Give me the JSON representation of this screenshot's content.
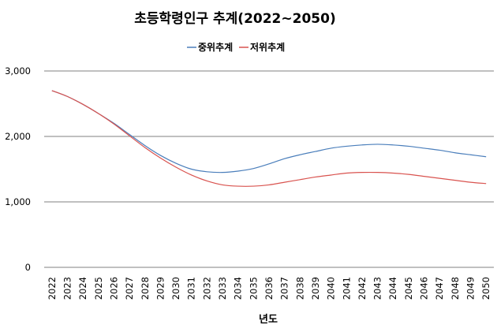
{
  "chart_data": {
    "type": "line",
    "title": "초등학령인구 추계(2022~2050)",
    "xlabel": "년도",
    "ylabel": "",
    "ylim": [
      0,
      3000
    ],
    "yticks": [
      0,
      1000,
      2000,
      3000
    ],
    "ytick_labels": [
      "0",
      "1,000",
      "2,000",
      "3,000"
    ],
    "grid": "horizontal",
    "legend_position": "top-center",
    "x": [
      "2022",
      "2023",
      "2024",
      "2025",
      "2026",
      "2027",
      "2028",
      "2029",
      "2030",
      "2031",
      "2032",
      "2033",
      "2034",
      "2035",
      "2036",
      "2037",
      "2038",
      "2039",
      "2040",
      "2041",
      "2042",
      "2043",
      "2044",
      "2045",
      "2046",
      "2047",
      "2048",
      "2049",
      "2050"
    ],
    "series": [
      {
        "name": "중위추계",
        "color": "#4a7ebb",
        "values": [
          2700,
          2610,
          2490,
          2350,
          2200,
          2030,
          1860,
          1710,
          1590,
          1500,
          1460,
          1450,
          1470,
          1510,
          1580,
          1660,
          1720,
          1770,
          1820,
          1850,
          1870,
          1880,
          1870,
          1850,
          1820,
          1790,
          1750,
          1720,
          1690
        ]
      },
      {
        "name": "저위추계",
        "color": "#d9534f",
        "values": [
          2700,
          2610,
          2490,
          2350,
          2190,
          2010,
          1830,
          1670,
          1530,
          1410,
          1320,
          1260,
          1240,
          1240,
          1260,
          1300,
          1340,
          1380,
          1410,
          1440,
          1450,
          1450,
          1440,
          1420,
          1390,
          1360,
          1330,
          1300,
          1280
        ]
      }
    ]
  }
}
